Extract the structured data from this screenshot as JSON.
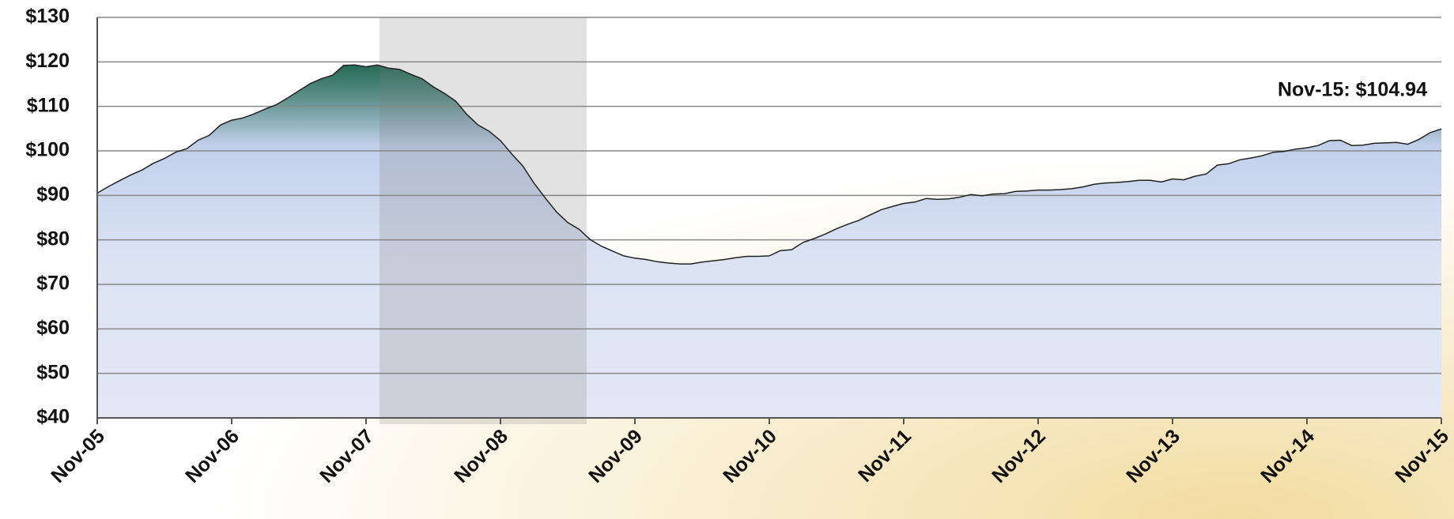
{
  "chart_data": {
    "type": "area",
    "annotation": "Nov-15: $104.94",
    "categories": [
      "Nov-05",
      null,
      null,
      null,
      null,
      null,
      null,
      null,
      null,
      null,
      null,
      null,
      "Nov-06",
      null,
      null,
      null,
      null,
      null,
      null,
      null,
      null,
      null,
      null,
      null,
      "Nov-07",
      null,
      null,
      null,
      null,
      null,
      null,
      null,
      null,
      null,
      null,
      null,
      "Nov-08",
      null,
      null,
      null,
      null,
      null,
      null,
      null,
      null,
      null,
      null,
      null,
      "Nov-09",
      null,
      null,
      null,
      null,
      null,
      null,
      null,
      null,
      null,
      null,
      null,
      "Nov-10",
      null,
      null,
      null,
      null,
      null,
      null,
      null,
      null,
      null,
      null,
      null,
      "Nov-11",
      null,
      null,
      null,
      null,
      null,
      null,
      null,
      null,
      null,
      null,
      null,
      "Nov-12",
      null,
      null,
      null,
      null,
      null,
      null,
      null,
      null,
      null,
      null,
      null,
      "Nov-13",
      null,
      null,
      null,
      null,
      null,
      null,
      null,
      null,
      null,
      null,
      null,
      "Nov-14",
      null,
      null,
      null,
      null,
      null,
      null,
      null,
      null,
      null,
      null,
      null,
      "Nov-15"
    ],
    "values": [
      90.5,
      92,
      93.3,
      94.6,
      95.7,
      97.2,
      98.3,
      99.7,
      100.5,
      102.4,
      103.5,
      105.8,
      106.9,
      107.4,
      108.3,
      109.4,
      110.4,
      111.9,
      113.5,
      115.1,
      116.2,
      117,
      119.2,
      119.3,
      118.9,
      119.3,
      118.6,
      118.3,
      117.2,
      116.2,
      114.4,
      112.9,
      111.2,
      108.2,
      105.8,
      104.4,
      102.3,
      99.3,
      96.6,
      92.7,
      89.4,
      86.3,
      83.9,
      82.4,
      80.1,
      78.6,
      77.5,
      76.4,
      75.9,
      75.6,
      75.1,
      74.8,
      74.6,
      74.6,
      75,
      75.3,
      75.6,
      76,
      76.3,
      76.3,
      76.4,
      77.6,
      77.8,
      79.4,
      80.3,
      81.3,
      82.5,
      83.5,
      84.4,
      85.6,
      86.8,
      87.5,
      88.2,
      88.5,
      89.3,
      89.1,
      89.2,
      89.6,
      90.2,
      89.9,
      90.3,
      90.4,
      90.9,
      91,
      91.2,
      91.2,
      91.3,
      91.5,
      91.9,
      92.5,
      92.8,
      92.9,
      93.1,
      93.4,
      93.4,
      93,
      93.7,
      93.5,
      94.3,
      94.8,
      96.8,
      97.1,
      98,
      98.4,
      98.9,
      99.7,
      99.9,
      100.4,
      100.7,
      101.2,
      102.3,
      102.4,
      101.2,
      101.3,
      101.7,
      101.8,
      101.9,
      101.5,
      102.6,
      104.1,
      104.94
    ],
    "color": "#222222",
    "ylim": [
      40,
      130
    ],
    "yticks": [
      {
        "value": 40,
        "label": "$40"
      },
      {
        "value": 50,
        "label": "$50"
      },
      {
        "value": 60,
        "label": "$60"
      },
      {
        "value": 70,
        "label": "$70"
      },
      {
        "value": 80,
        "label": "$80"
      },
      {
        "value": 90,
        "label": "$90"
      },
      {
        "value": 100,
        "label": "$100"
      },
      {
        "value": 110,
        "label": "$110"
      },
      {
        "value": 120,
        "label": "$120"
      },
      {
        "value": 130,
        "label": "$130"
      }
    ],
    "grid": true
  }
}
